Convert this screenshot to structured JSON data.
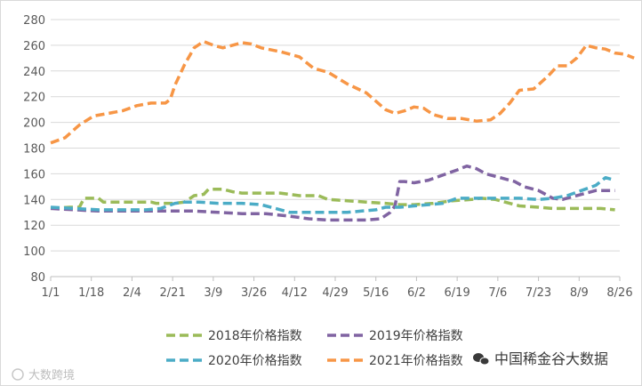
{
  "chart_data": {
    "type": "line",
    "categories": [
      "1/1",
      "1/18",
      "2/4",
      "2/21",
      "3/9",
      "3/26",
      "4/12",
      "4/29",
      "5/16",
      "6/2",
      "6/19",
      "7/6",
      "7/23",
      "8/9",
      "8/26"
    ],
    "ylim": [
      80,
      280
    ],
    "yticks": [
      80,
      100,
      120,
      140,
      160,
      180,
      200,
      220,
      240,
      260,
      280
    ],
    "grid": true,
    "legend_position": "bottom",
    "series": [
      {
        "name": "2018年价格指数",
        "color": "#9bbb59",
        "values": [
          [
            0,
            133
          ],
          [
            8,
            134
          ],
          [
            12,
            134
          ],
          [
            14,
            141
          ],
          [
            20,
            141
          ],
          [
            22,
            138
          ],
          [
            28,
            138
          ],
          [
            34,
            138
          ],
          [
            38,
            138
          ],
          [
            42,
            138
          ],
          [
            44,
            137
          ],
          [
            48,
            137
          ],
          [
            52,
            137
          ],
          [
            56,
            138
          ],
          [
            60,
            143
          ],
          [
            64,
            144
          ],
          [
            66,
            148
          ],
          [
            72,
            148
          ],
          [
            76,
            146
          ],
          [
            80,
            145
          ],
          [
            88,
            145
          ],
          [
            96,
            145
          ],
          [
            100,
            144
          ],
          [
            104,
            143
          ],
          [
            112,
            143
          ],
          [
            116,
            140
          ],
          [
            124,
            139
          ],
          [
            132,
            138
          ],
          [
            140,
            137
          ],
          [
            146,
            136
          ],
          [
            152,
            136
          ],
          [
            160,
            137
          ],
          [
            168,
            139
          ],
          [
            176,
            140
          ],
          [
            180,
            141
          ],
          [
            186,
            140
          ],
          [
            190,
            138
          ],
          [
            196,
            135
          ],
          [
            204,
            134
          ],
          [
            210,
            133
          ],
          [
            220,
            133
          ],
          [
            230,
            133
          ],
          [
            236,
            132
          ]
        ]
      },
      {
        "name": "2019年价格指数",
        "color": "#8064a2",
        "values": [
          [
            0,
            133
          ],
          [
            10,
            132
          ],
          [
            20,
            131
          ],
          [
            30,
            131
          ],
          [
            40,
            131
          ],
          [
            50,
            131
          ],
          [
            60,
            131
          ],
          [
            70,
            130
          ],
          [
            80,
            129
          ],
          [
            90,
            129
          ],
          [
            100,
            127
          ],
          [
            108,
            125
          ],
          [
            116,
            124
          ],
          [
            124,
            124
          ],
          [
            132,
            124
          ],
          [
            138,
            125
          ],
          [
            142,
            130
          ],
          [
            144,
            135
          ],
          [
            146,
            154
          ],
          [
            148,
            154
          ],
          [
            152,
            153
          ],
          [
            158,
            155
          ],
          [
            164,
            159
          ],
          [
            170,
            163
          ],
          [
            174,
            166
          ],
          [
            178,
            164
          ],
          [
            182,
            160
          ],
          [
            188,
            157
          ],
          [
            194,
            154
          ],
          [
            198,
            150
          ],
          [
            204,
            147
          ],
          [
            210,
            141
          ],
          [
            214,
            140
          ],
          [
            218,
            142
          ],
          [
            224,
            145
          ],
          [
            228,
            147
          ],
          [
            232,
            147
          ],
          [
            236,
            147
          ]
        ]
      },
      {
        "name": "2020年价格指数",
        "color": "#4bacc6",
        "values": [
          [
            0,
            134
          ],
          [
            10,
            133
          ],
          [
            20,
            132
          ],
          [
            30,
            132
          ],
          [
            40,
            132
          ],
          [
            46,
            133
          ],
          [
            52,
            137
          ],
          [
            56,
            138
          ],
          [
            62,
            138
          ],
          [
            70,
            137
          ],
          [
            80,
            137
          ],
          [
            88,
            136
          ],
          [
            94,
            133
          ],
          [
            100,
            130
          ],
          [
            108,
            130
          ],
          [
            116,
            130
          ],
          [
            124,
            130
          ],
          [
            130,
            131
          ],
          [
            136,
            132
          ],
          [
            140,
            134
          ],
          [
            146,
            134
          ],
          [
            152,
            135
          ],
          [
            158,
            136
          ],
          [
            164,
            137
          ],
          [
            170,
            141
          ],
          [
            176,
            141
          ],
          [
            182,
            141
          ],
          [
            188,
            141
          ],
          [
            196,
            141
          ],
          [
            204,
            140
          ],
          [
            210,
            141
          ],
          [
            216,
            143
          ],
          [
            222,
            147
          ],
          [
            228,
            151
          ],
          [
            232,
            157
          ],
          [
            236,
            155
          ]
        ]
      },
      {
        "name": "2021年价格指数",
        "color": "#f79646",
        "values": [
          [
            0,
            184
          ],
          [
            6,
            188
          ],
          [
            12,
            198
          ],
          [
            18,
            205
          ],
          [
            24,
            207
          ],
          [
            30,
            209
          ],
          [
            36,
            213
          ],
          [
            42,
            215
          ],
          [
            48,
            215
          ],
          [
            50,
            218
          ],
          [
            52,
            229
          ],
          [
            56,
            245
          ],
          [
            60,
            258
          ],
          [
            64,
            263
          ],
          [
            68,
            260
          ],
          [
            72,
            258
          ],
          [
            76,
            260
          ],
          [
            80,
            262
          ],
          [
            84,
            261
          ],
          [
            88,
            258
          ],
          [
            96,
            255
          ],
          [
            104,
            251
          ],
          [
            110,
            242
          ],
          [
            116,
            239
          ],
          [
            124,
            230
          ],
          [
            132,
            223
          ],
          [
            140,
            210
          ],
          [
            144,
            207
          ],
          [
            148,
            209
          ],
          [
            152,
            212
          ],
          [
            156,
            211
          ],
          [
            160,
            206
          ],
          [
            166,
            203
          ],
          [
            172,
            203
          ],
          [
            178,
            201
          ],
          [
            184,
            202
          ],
          [
            188,
            207
          ],
          [
            192,
            215
          ],
          [
            196,
            225
          ],
          [
            202,
            226
          ],
          [
            208,
            236
          ],
          [
            212,
            244
          ],
          [
            216,
            244
          ],
          [
            220,
            250
          ],
          [
            224,
            260
          ],
          [
            228,
            258
          ],
          [
            232,
            257
          ],
          [
            236,
            254
          ],
          [
            240,
            253
          ],
          [
            244,
            250
          ]
        ]
      }
    ]
  },
  "watermarks": {
    "left": "大数跨境",
    "right": "中国稀金谷大数据"
  }
}
